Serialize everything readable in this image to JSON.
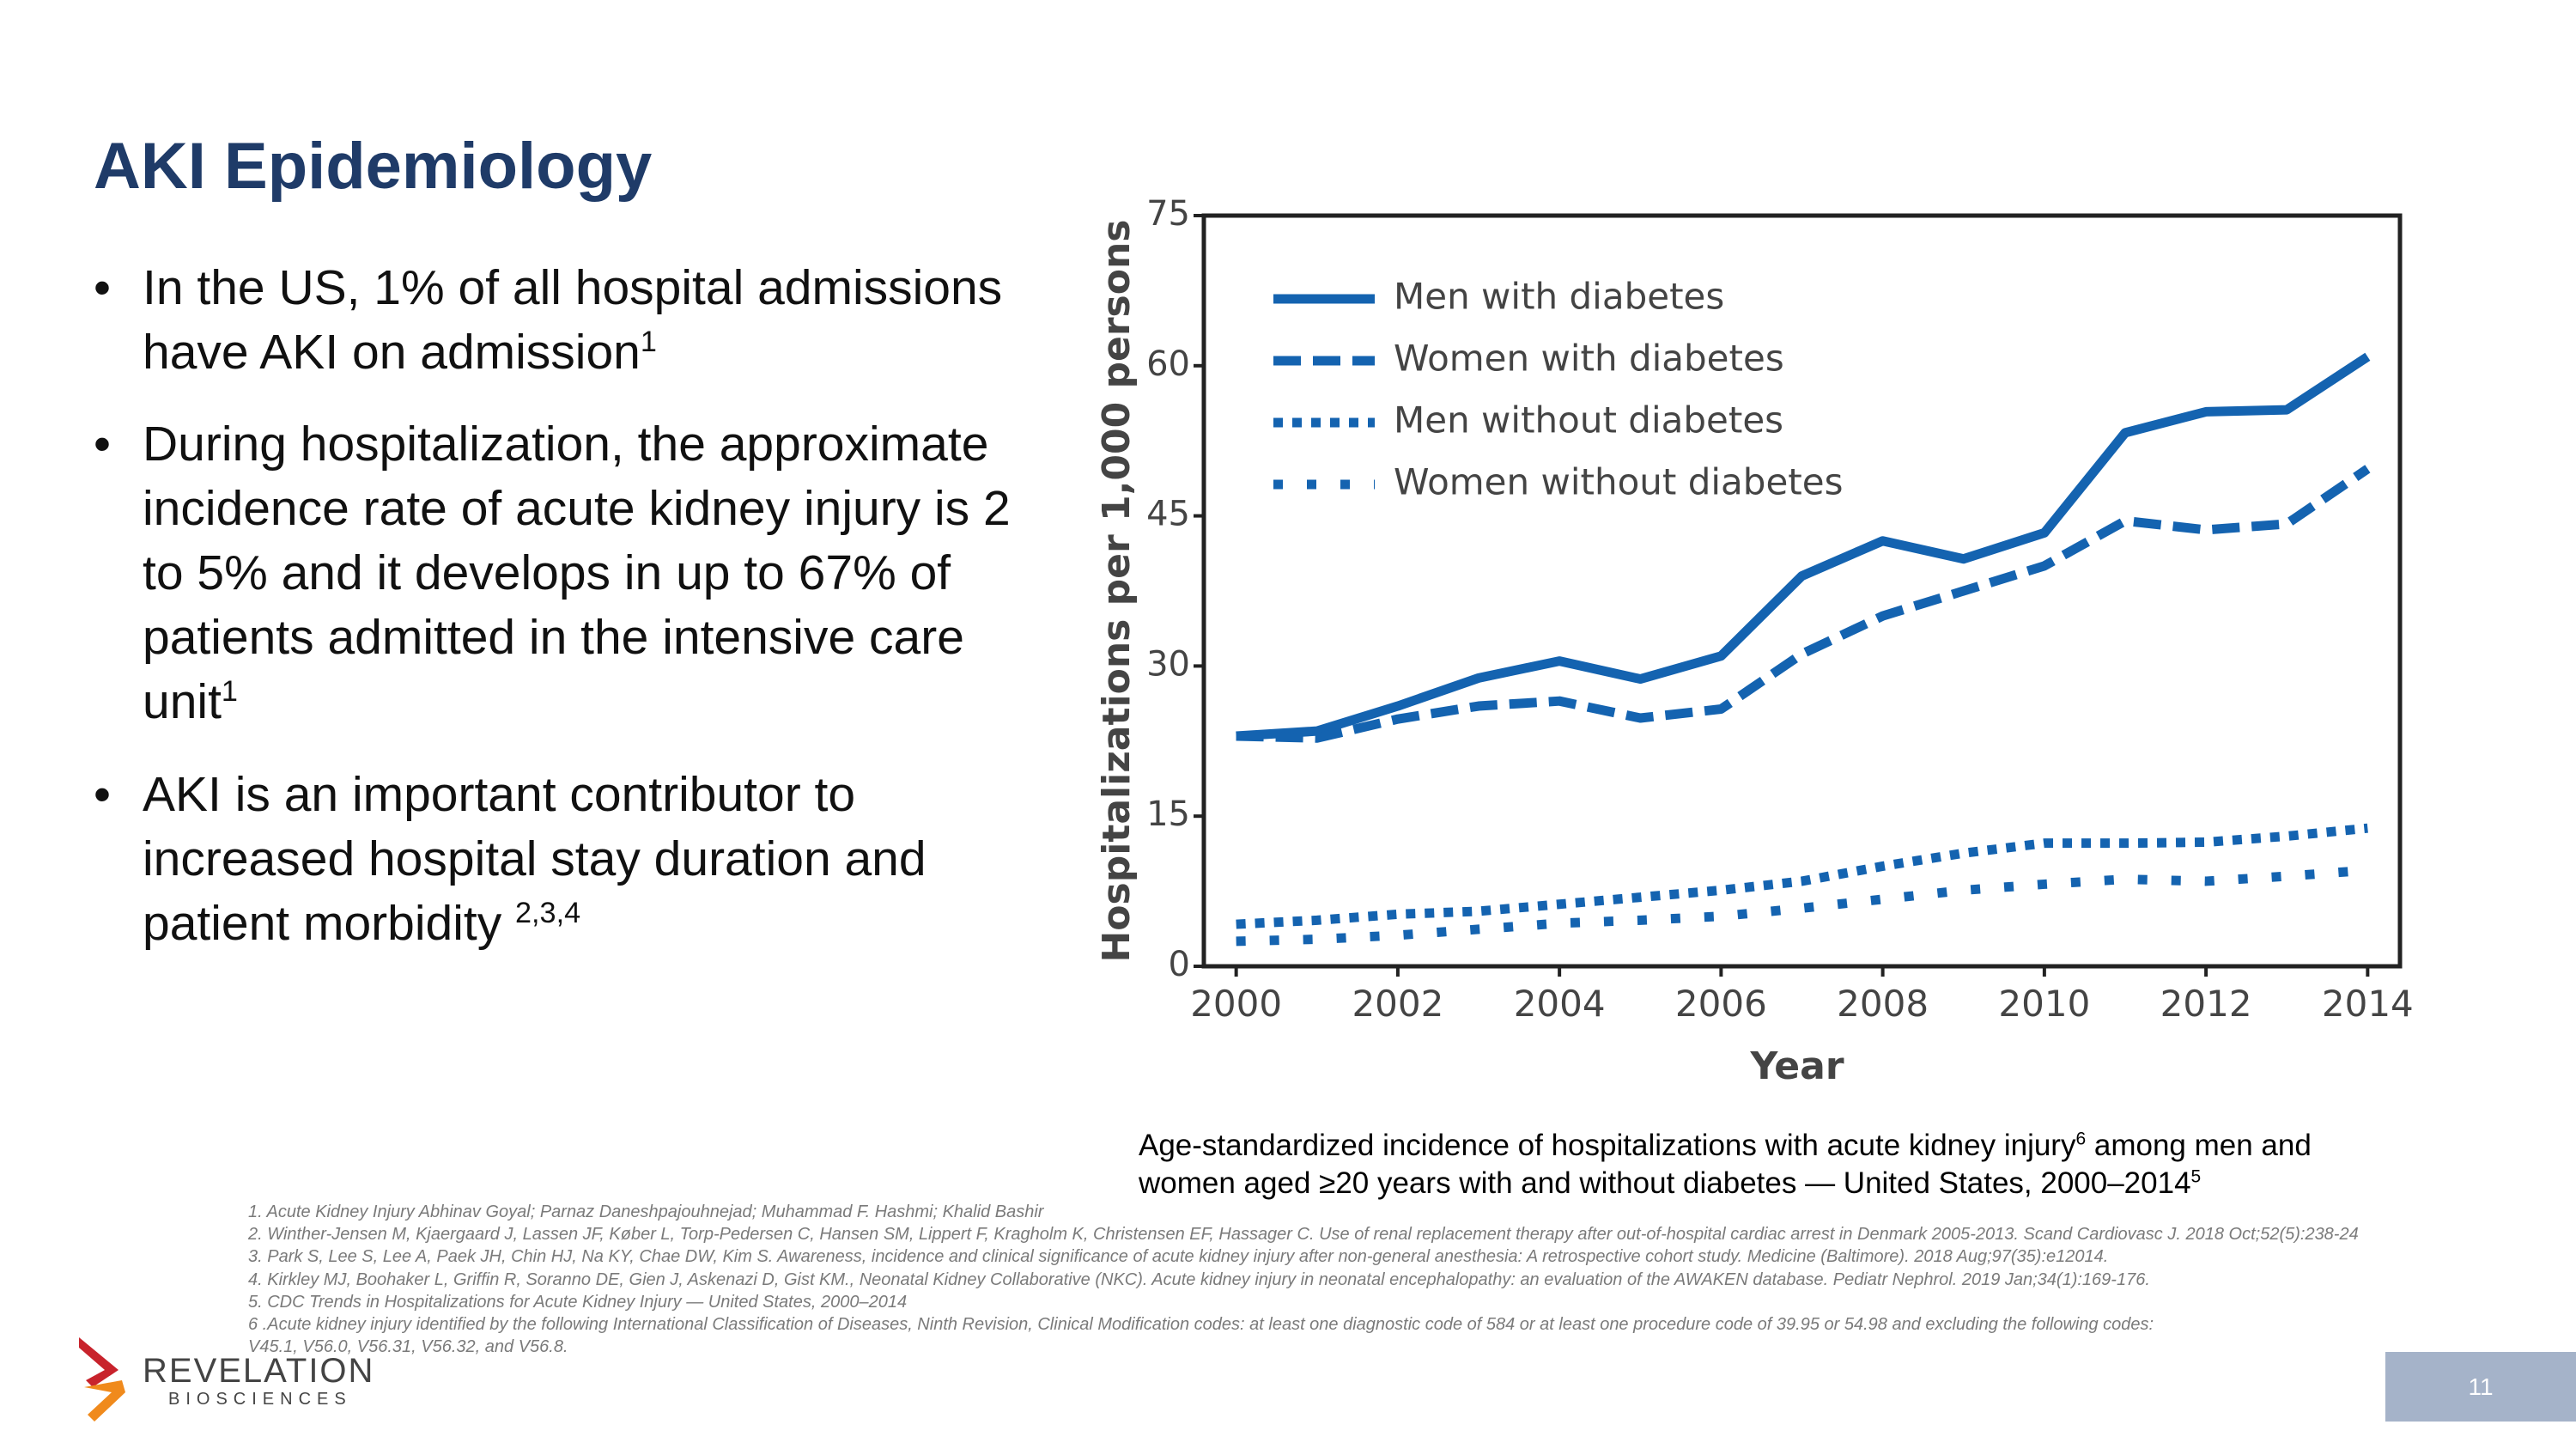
{
  "header": {
    "title": "AKI Epidemiology"
  },
  "bullets": [
    {
      "text": "In the US, 1% of all hospital admissions have AKI on admission",
      "sup": "1"
    },
    {
      "text": "During hospitalization, the approximate incidence rate of acute kidney injury is 2 to 5% and it develops in up to 67% of patients admitted in the intensive care unit",
      "sup": "1"
    },
    {
      "text": "AKI is an important contributor to increased hospital stay duration and patient morbidity ",
      "sup": "2,3,4"
    }
  ],
  "chart_data": {
    "type": "line",
    "x_label": "Year",
    "y_label": "Hospitalizations per 1,000 persons",
    "x": [
      2000,
      2001,
      2002,
      2003,
      2004,
      2005,
      2006,
      2007,
      2008,
      2009,
      2010,
      2011,
      2012,
      2013,
      2014
    ],
    "series": [
      {
        "name": "Men with diabetes",
        "color": "#1463b0",
        "style": "solid",
        "values": [
          23,
          23.5,
          26,
          28.8,
          30.5,
          28.7,
          31,
          39,
          42.5,
          40.7,
          43.3,
          53.3,
          55.4,
          55.6,
          60.9
        ]
      },
      {
        "name": "Women with diabetes",
        "color": "#1463b0",
        "style": "dashed",
        "values": [
          23,
          22.8,
          24.7,
          26,
          26.5,
          24.8,
          25.7,
          31.2,
          35,
          37.5,
          40,
          44.5,
          43.6,
          44.2,
          49.7
        ]
      },
      {
        "name": "Men without diabetes",
        "color": "#1463b0",
        "style": "dotted",
        "values": [
          4.2,
          4.6,
          5.2,
          5.5,
          6.2,
          6.9,
          7.6,
          8.5,
          10,
          11.3,
          12.3,
          12.3,
          12.4,
          13,
          13.8
        ]
      },
      {
        "name": "Women without diabetes",
        "color": "#1463b0",
        "style": "sparse-dotted",
        "values": [
          2.5,
          2.7,
          3.1,
          3.7,
          4.3,
          4.6,
          5,
          5.8,
          6.7,
          7.6,
          8.2,
          8.7,
          8.5,
          9,
          9.6
        ]
      }
    ],
    "xlim": [
      1999.6,
      2014.4
    ],
    "xticks": [
      2000,
      2002,
      2004,
      2006,
      2008,
      2010,
      2012,
      2014
    ],
    "ylim": [
      0,
      75
    ],
    "yticks": [
      0,
      15,
      30,
      45,
      60,
      75
    ],
    "grid": false,
    "legend": "upper left"
  },
  "caption": {
    "text": "Age-standardized incidence of hospitalizations with acute kidney injury",
    "sup1": "6",
    "text2": " among men and women aged ≥20 years with and without diabetes — United States, 2000–2014",
    "sup2": "5"
  },
  "footnotes": [
    "1. Acute Kidney Injury Abhinav Goyal; Parnaz Daneshpajouhnejad; Muhammad F. Hashmi; Khalid Bashir",
    "2. Winther-Jensen M, Kjaergaard J, Lassen JF, Køber L, Torp-Pedersen C, Hansen SM, Lippert F, Kragholm K, Christensen EF, Hassager C. Use of renal replacement therapy after out-of-hospital cardiac arrest in Denmark 2005-2013. Scand Cardiovasc J. 2018 Oct;52(5):238-24",
    "3. Park S, Lee S, Lee A, Paek JH, Chin HJ, Na KY, Chae DW, Kim S. Awareness, incidence and clinical significance of acute kidney injury after non-general anesthesia: A retrospective cohort study. Medicine (Baltimore). 2018 Aug;97(35):e12014.",
    "4. Kirkley MJ, Boohaker L, Griffin R, Soranno DE, Gien J, Askenazi D, Gist KM., Neonatal Kidney Collaborative (NKC). Acute kidney injury in neonatal encephalopathy: an evaluation of the AWAKEN database. Pediatr Nephrol. 2019 Jan;34(1):169-176.",
    "5. CDC Trends in Hospitalizations for Acute Kidney Injury — United States, 2000–2014",
    "6 .Acute kidney injury identified by the following International Classification of Diseases, Ninth Revision, Clinical Modification codes: at least one diagnostic code of 584 or at least one procedure code of 39.95 or 54.98 and excluding the following codes: V45.1, V56.0, V56.31, V56.32, and V56.8."
  ],
  "logo": {
    "name": "REVELATION",
    "sub": "BIOSCIENCES"
  },
  "page_number": "11"
}
